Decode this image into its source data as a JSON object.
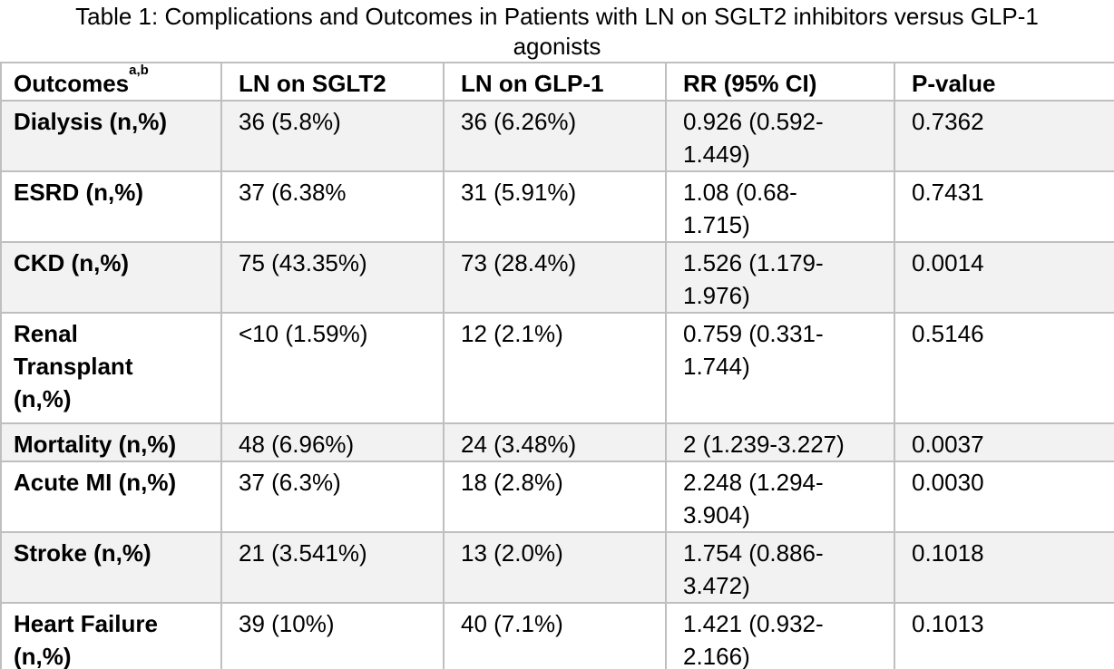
{
  "title": {
    "line1": "Table 1: Complications and Outcomes in Patients with LN on SGLT2 inhibitors versus GLP-1",
    "line2": "agonists"
  },
  "table": {
    "columns": {
      "outcomes": {
        "label": "Outcomes",
        "superscript": "a,b"
      },
      "sglt2": "LN on SGLT2",
      "glp1": "LN on GLP-1",
      "rr": "RR (95% CI)",
      "pvalue": "P-value"
    },
    "rows": [
      {
        "outcome": "Dialysis (n,%)",
        "sglt2": "36 (5.8%)",
        "glp1": "36 (6.26%)",
        "rr": "0.926 (0.592-\n1.449)",
        "pvalue": "0.7362"
      },
      {
        "outcome": "ESRD (n,%)",
        "sglt2": "37 (6.38%",
        "glp1": "31 (5.91%)",
        "rr": "1.08 (0.68-\n1.715)",
        "pvalue": "0.7431"
      },
      {
        "outcome": "CKD (n,%)",
        "sglt2": "75 (43.35%)",
        "glp1": "73 (28.4%)",
        "rr": "1.526 (1.179-\n1.976)",
        "pvalue": "0.0014"
      },
      {
        "outcome": "Renal\nTransplant\n(n,%)",
        "sglt2": "<10 (1.59%)",
        "glp1": "12 (2.1%)",
        "rr": "0.759 (0.331-\n1.744)",
        "pvalue": "0.5146"
      },
      {
        "outcome": "Mortality (n,%)",
        "sglt2": "48 (6.96%)",
        "glp1": "24 (3.48%)",
        "rr": "2 (1.239-3.227)",
        "pvalue": "0.0037"
      },
      {
        "outcome": "Acute MI (n,%)",
        "sglt2": "37 (6.3%)",
        "glp1": "18 (2.8%)",
        "rr": "2.248 (1.294-\n3.904)",
        "pvalue": "0.0030"
      },
      {
        "outcome": "Stroke (n,%)",
        "sglt2": "21 (3.541%)",
        "glp1": "13 (2.0%)",
        "rr": "1.754 (0.886-\n3.472)",
        "pvalue": "0.1018"
      },
      {
        "outcome": "Heart Failure\n(n,%)",
        "sglt2": "39 (10%)",
        "glp1": "40 (7.1%)",
        "rr": "1.421 (0.932-\n2.166)",
        "pvalue": "0.1013"
      }
    ]
  },
  "colors": {
    "border": "#bfbfbf",
    "banded_row_bg": "#f2f2f2",
    "row_bg": "#ffffff",
    "text": "#000000"
  }
}
